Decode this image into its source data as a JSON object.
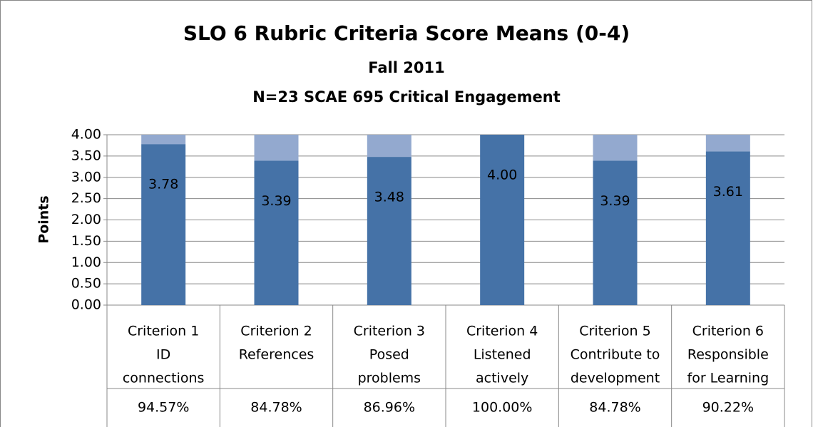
{
  "chart_data": {
    "type": "stacked_bar",
    "title": "SLO 6 Rubric Criteria Score Means (0-4)",
    "subtitle": "Fall 2011",
    "subtitle2": "N=23 SCAE 695 Critical Engagement",
    "y_label": "Points",
    "categories": [
      [
        "Criterion 1",
        "ID",
        "connections"
      ],
      [
        "Criterion 2",
        "References"
      ],
      [
        "Criterion 3",
        "Posed",
        "problems"
      ],
      [
        "Criterion 4",
        "Listened",
        "actively"
      ],
      [
        "Criterion 5",
        "Contribute to",
        "development"
      ],
      [
        "Criterion 6",
        "Responsible",
        "for Learning"
      ]
    ],
    "series": [
      {
        "color": "#4572a7",
        "values": [
          3.78,
          3.39,
          3.48,
          4,
          3.39,
          3.61
        ],
        "value_labels": [
          "3.78",
          "3.39",
          "3.48",
          "4.00",
          "3.39",
          "3.61"
        ]
      },
      {
        "color": "#93a9cf",
        "values": [
          0.22,
          0.61,
          0.52,
          0,
          0.61,
          0.39
        ]
      }
    ],
    "percentages": [
      {
        "value": 94.57,
        "label": "94.57%"
      },
      {
        "value": 84.78,
        "label": "84.78%"
      },
      {
        "value": 86.96,
        "label": "86.96%"
      },
      {
        "value": 100,
        "label": "100.00%"
      },
      {
        "value": 84.78,
        "label": "84.78%"
      },
      {
        "value": 90.22,
        "label": "90.22%"
      }
    ],
    "ylim": [
      0,
      4
    ],
    "yticks": [
      {
        "value": 0,
        "label": "0.00"
      },
      {
        "value": 0.5,
        "label": "0.50"
      },
      {
        "value": 1,
        "label": "1.00"
      },
      {
        "value": 1.5,
        "label": "1.50"
      },
      {
        "value": 2,
        "label": "2.00"
      },
      {
        "value": 2.5,
        "label": "2.50"
      },
      {
        "value": 3,
        "label": "3.00"
      },
      {
        "value": 3.5,
        "label": "3.50"
      },
      {
        "value": 4,
        "label": "4.00"
      }
    ],
    "grid": true
  }
}
